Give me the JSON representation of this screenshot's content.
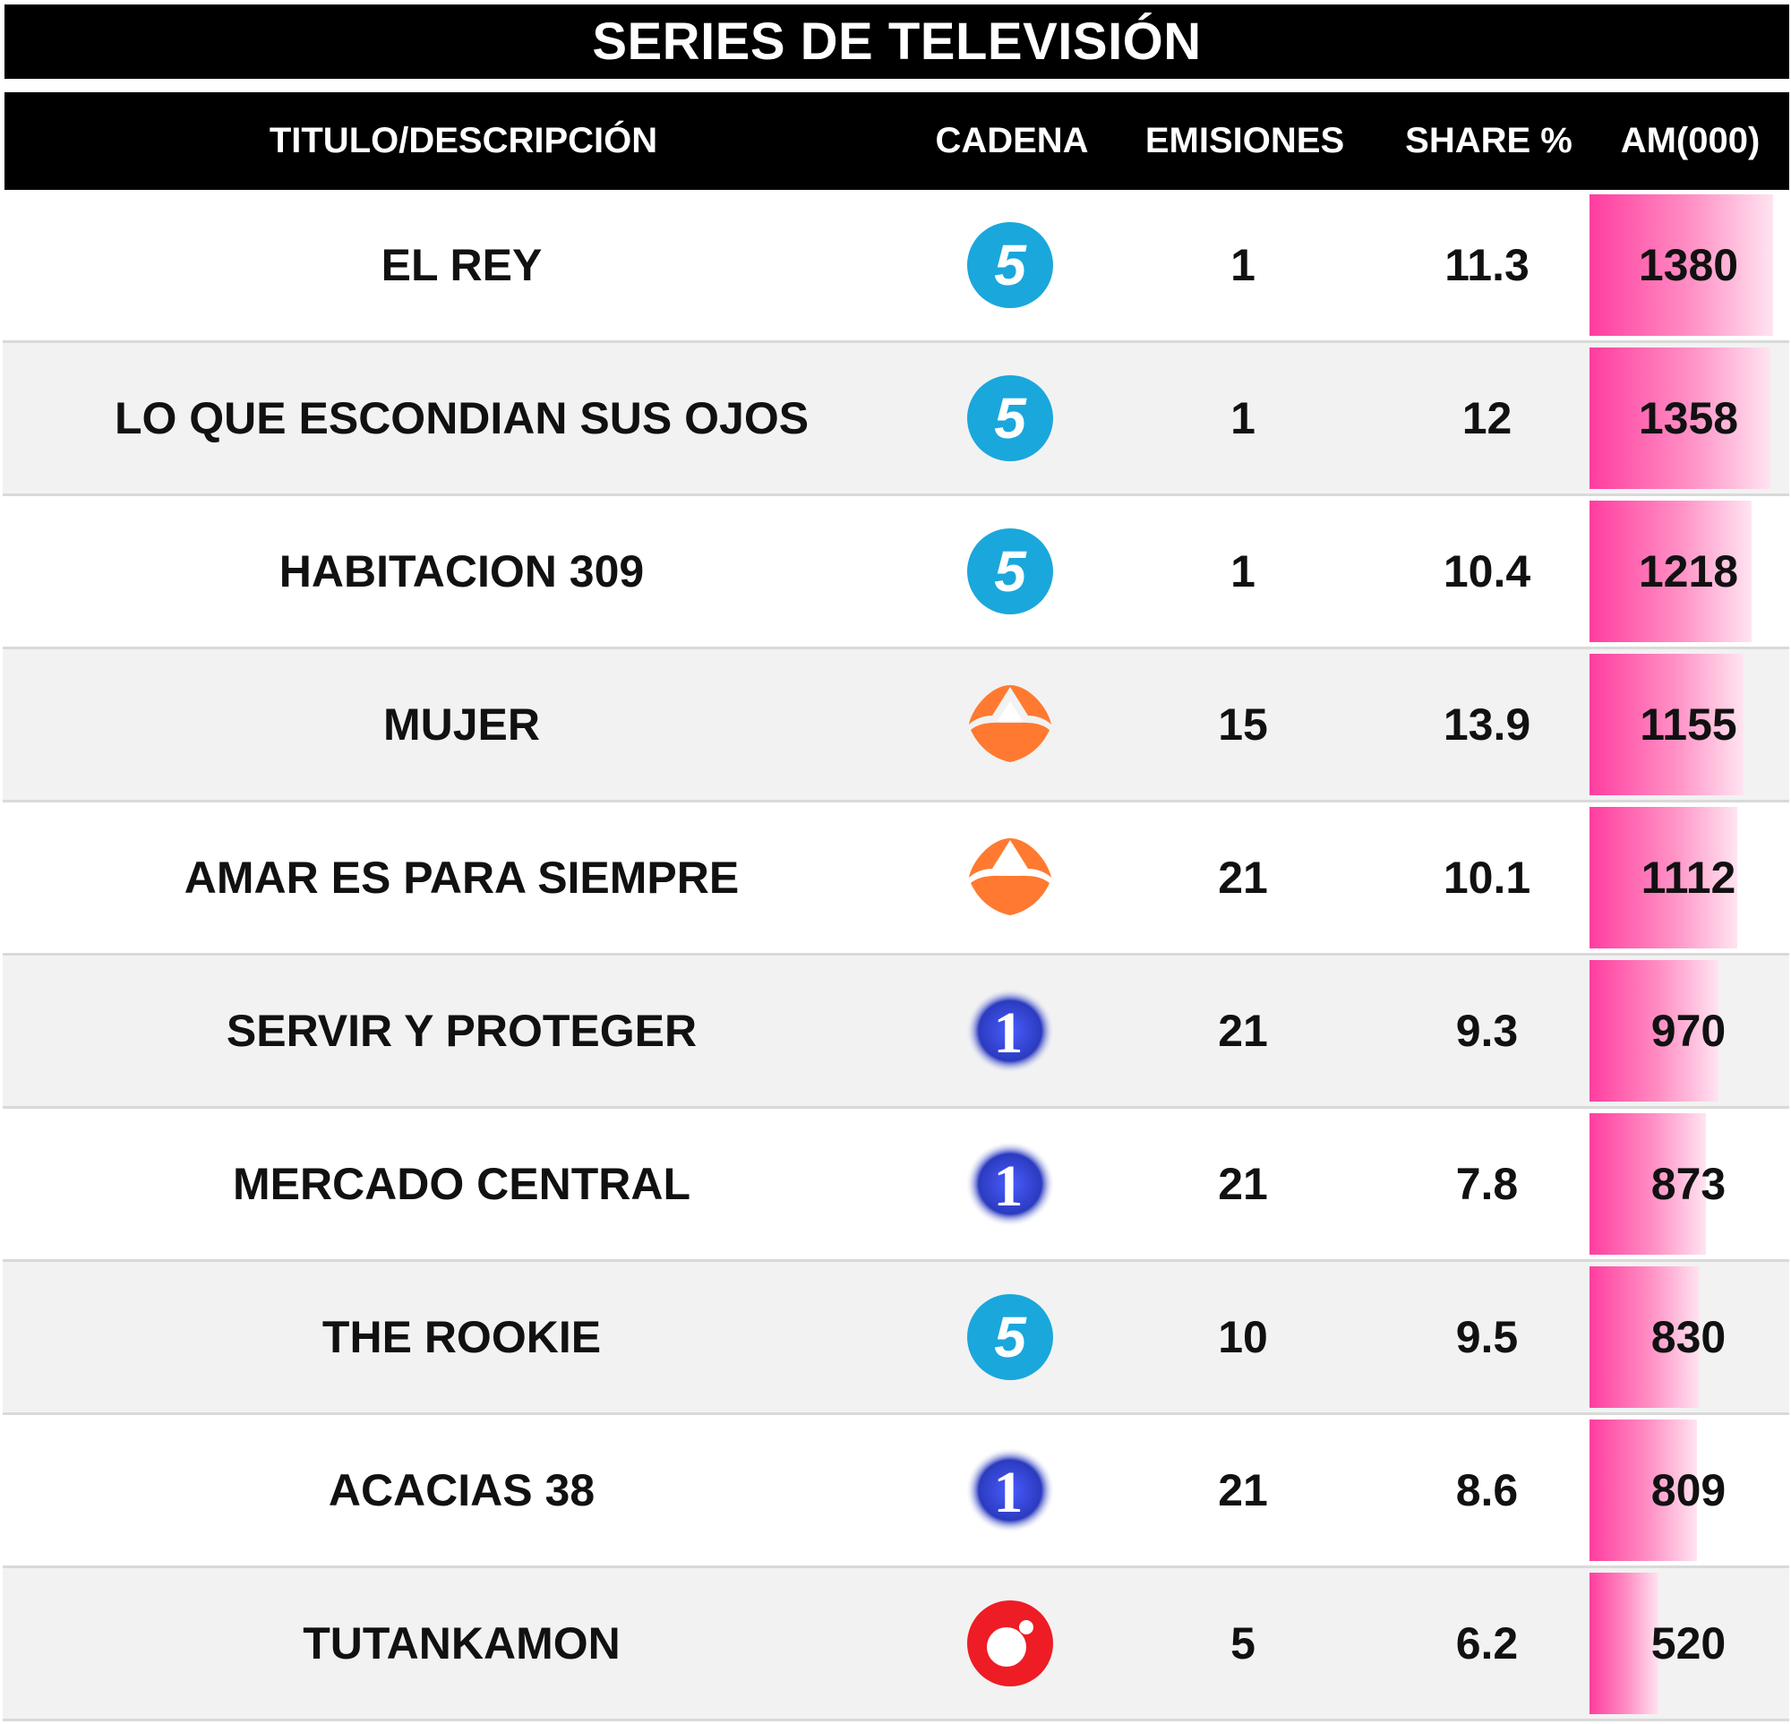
{
  "chart_data": {
    "type": "table",
    "title": "SERIES DE TELEVISIÓN",
    "columns": [
      "TITULO/DESCRIPCIÓN",
      "CADENA",
      "EMISIONES",
      "SHARE %",
      "AM(000)"
    ],
    "rows": [
      {
        "title": "EL REY",
        "channel": "telecinco-logo-icon",
        "emissions": "1",
        "share": "11.3",
        "am": "1380",
        "am_value": 1380
      },
      {
        "title": "LO QUE ESCONDIAN SUS OJOS",
        "channel": "telecinco-logo-icon",
        "emissions": "1",
        "share": "12",
        "am": "1358",
        "am_value": 1358
      },
      {
        "title": "HABITACION 309",
        "channel": "telecinco-logo-icon",
        "emissions": "1",
        "share": "10.4",
        "am": "1218",
        "am_value": 1218
      },
      {
        "title": "MUJER",
        "channel": "antena3-logo-icon",
        "emissions": "15",
        "share": "13.9",
        "am": "1155",
        "am_value": 1155
      },
      {
        "title": "AMAR ES PARA SIEMPRE",
        "channel": "antena3-logo-icon",
        "emissions": "21",
        "share": "10.1",
        "am": "1112",
        "am_value": 1112
      },
      {
        "title": "SERVIR Y PROTEGER",
        "channel": "la1-logo-icon",
        "emissions": "21",
        "share": "9.3",
        "am": "970",
        "am_value": 970
      },
      {
        "title": "MERCADO CENTRAL",
        "channel": "la1-logo-icon",
        "emissions": "21",
        "share": "7.8",
        "am": "873",
        "am_value": 873
      },
      {
        "title": "THE ROOKIE",
        "channel": "telecinco-logo-icon",
        "emissions": "10",
        "share": "9.5",
        "am": "830",
        "am_value": 830
      },
      {
        "title": "ACACIAS 38",
        "channel": "la1-logo-icon",
        "emissions": "21",
        "share": "8.6",
        "am": "809",
        "am_value": 809
      },
      {
        "title": "TUTANKAMON",
        "channel": "cuatro-logo-icon",
        "emissions": "5",
        "share": "6.2",
        "am": "520",
        "am_value": 520
      }
    ],
    "am_max": 1380,
    "colors": {
      "header": "#000000",
      "am_bar": "#ff3d9f",
      "telecinco": "#1aa7dc",
      "antena3": "#ff7a30",
      "la1": "#2b3bbf",
      "cuatro": "#ee1c25"
    }
  }
}
